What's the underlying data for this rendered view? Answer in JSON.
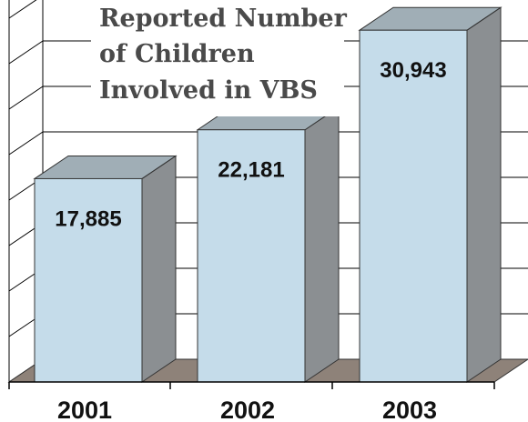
{
  "chart_data": {
    "type": "bar",
    "title_lines": [
      "Reported Number",
      "of Children",
      "Involved in VBS"
    ],
    "categories": [
      "2001",
      "2002",
      "2003"
    ],
    "values": [
      17885,
      22181,
      30943
    ],
    "value_labels": [
      "17,885",
      "22,181",
      "30,943"
    ],
    "ylim": [
      0,
      40000
    ],
    "grid": true,
    "style": "3d",
    "colors": {
      "bar_front": "#c5dcea",
      "bar_top": "#a0aeb6",
      "bar_side": "#8b8f92",
      "floor": "#8e8279",
      "grid": "#000000"
    }
  }
}
